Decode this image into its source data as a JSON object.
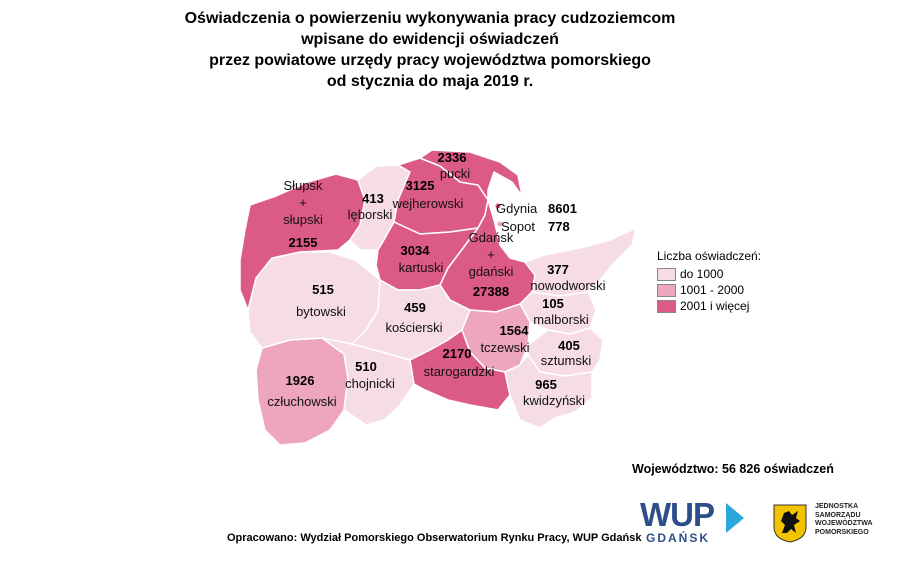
{
  "title": {
    "line1": "Oświadczenia o powierzeniu wykonywania pracy cudzoziemcom",
    "line2": "wpisane do ewidencji oświadczeń",
    "line3": "przez powiatowe urzędy pracy województwa pomorskiego",
    "line4": "od stycznia do maja 2019 r."
  },
  "legend": {
    "title": "Liczba oświadczeń:",
    "items": [
      {
        "label": "do 1000",
        "color": "#f6dce5"
      },
      {
        "label": "1001 - 2000",
        "color": "#eda6bd"
      },
      {
        "label": "2001 i więcej",
        "color": "#dc5a88"
      }
    ]
  },
  "regions": {
    "slupsk": {
      "name_l1": "Słupsk",
      "name_l2": "+",
      "name_l3": "słupski",
      "value": "2155",
      "color": "#dc5a88"
    },
    "leborski": {
      "name": "lęborski",
      "value": "413",
      "color": "#f6dce5"
    },
    "wejherowski": {
      "name": "wejherowski",
      "value": "3125",
      "color": "#dc5a88"
    },
    "pucki": {
      "name": "pucki",
      "value": "2336",
      "color": "#dc5a88"
    },
    "gdynia": {
      "name": "Gdynia",
      "value": "8601"
    },
    "sopot": {
      "name": "Sopot",
      "value": "778"
    },
    "kartuski": {
      "name": "kartuski",
      "value": "3034",
      "color": "#dc5a88"
    },
    "gdanski": {
      "name_l1": "Gdańsk",
      "name_l2": "+",
      "name_l3": "gdański",
      "value": "27388",
      "color": "#dc5a88"
    },
    "nowodworski": {
      "name": "nowodworski",
      "value": "377",
      "color": "#f6dce5"
    },
    "bytowski": {
      "name": "bytowski",
      "value": "515",
      "color": "#f6dce5"
    },
    "koscierski": {
      "name": "kościerski",
      "value": "459",
      "color": "#f6dce5"
    },
    "malborski": {
      "name": "malborski",
      "value": "105",
      "color": "#f6dce5"
    },
    "tczewski": {
      "name": "tczewski",
      "value": "1564",
      "color": "#eda6bd"
    },
    "sztumski": {
      "name": "sztumski",
      "value": "405",
      "color": "#f6dce5"
    },
    "czluchowski": {
      "name": "człuchowski",
      "value": "1926",
      "color": "#eda6bd"
    },
    "chojnicki": {
      "name": "chojnicki",
      "value": "510",
      "color": "#f6dce5"
    },
    "starogardzki": {
      "name": "starogardzki",
      "value": "2170",
      "color": "#dc5a88"
    },
    "kwidzynski": {
      "name": "kwidzyński",
      "value": "965",
      "color": "#f6dce5"
    }
  },
  "total": "Województwo: 56 826 oświadczeń",
  "source": "Opracowano: Wydział Pomorskiego Obserwatorium Rynku Pracy, WUP Gdańsk",
  "logos": {
    "wup_main": "WUP",
    "wup_sub": "GDAŃSK",
    "crest_icon": "pomorskie-griffin-crest",
    "crest_text": [
      "JEDNOSTKA",
      "SAMORZĄDU",
      "WOJEWÓDZTWA",
      "POMORSKIEGO"
    ]
  }
}
